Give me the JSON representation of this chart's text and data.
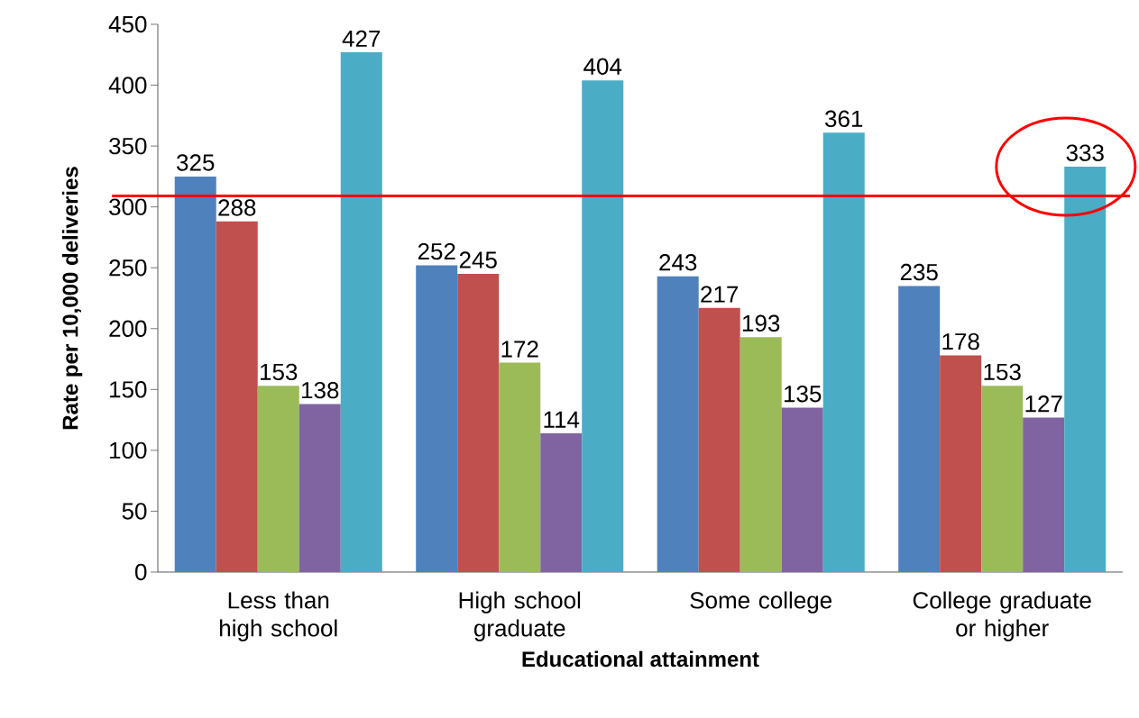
{
  "chart_data": {
    "type": "bar",
    "xlabel": "Educational attainment",
    "ylabel": "Rate per 10,000 deliveries",
    "categories": [
      "Less than high school",
      "High school graduate",
      "Some college",
      "College graduate or higher"
    ],
    "series": [
      {
        "color": "#4f81bd",
        "values": [
          325,
          252,
          243,
          235
        ]
      },
      {
        "color": "#c0504d",
        "values": [
          288,
          245,
          217,
          178
        ]
      },
      {
        "color": "#9bbb59",
        "values": [
          153,
          172,
          193,
          153
        ]
      },
      {
        "color": "#8064a2",
        "values": [
          138,
          114,
          135,
          127
        ]
      },
      {
        "color": "#4bacc6",
        "values": [
          427,
          404,
          361,
          333
        ]
      }
    ],
    "ylim": [
      0,
      450
    ],
    "yticks": [
      0,
      50,
      100,
      150,
      200,
      250,
      300,
      350,
      400,
      450
    ],
    "data_labels": true,
    "grid": false,
    "ref_lines": [
      {
        "axis": "y",
        "value": 309,
        "color": "#ff0000"
      }
    ]
  }
}
